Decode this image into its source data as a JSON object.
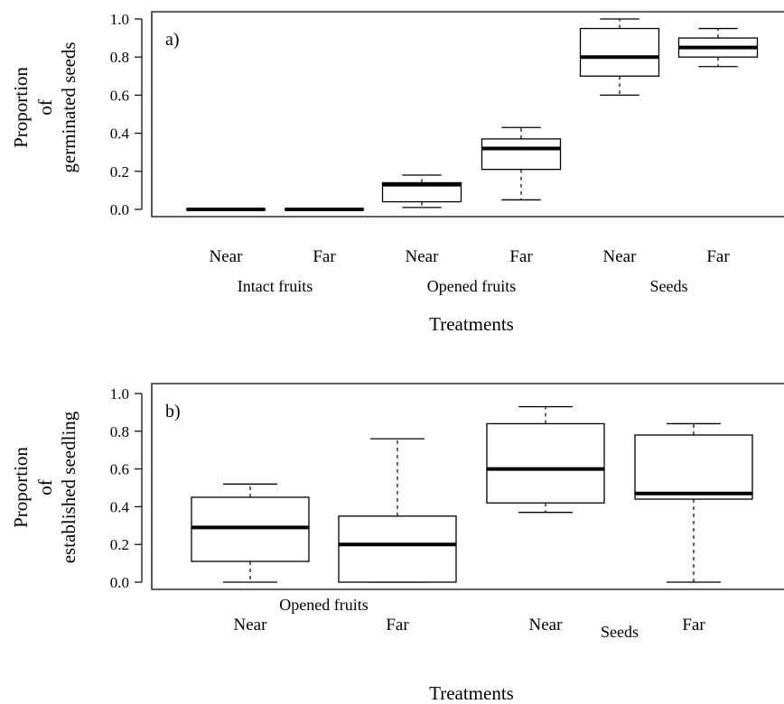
{
  "chart_data": [
    {
      "type": "boxplot",
      "panel_label": "a)",
      "ylabel_lines": [
        "Proportion",
        "of",
        "germinated seeds"
      ],
      "xlabel": "Treatments",
      "ylim": [
        0,
        1
      ],
      "yticks": [
        "0.0",
        "0.2",
        "0.4",
        "0.6",
        "0.8",
        "1.0"
      ],
      "groups": [
        {
          "label": "Intact fruits",
          "categories": [
            "Near",
            "Far"
          ]
        },
        {
          "label": "Opened fruits",
          "categories": [
            "Near",
            "Far"
          ]
        },
        {
          "label": "Seeds",
          "categories": [
            "Near",
            "Far"
          ]
        }
      ],
      "boxes": [
        {
          "group": "Intact fruits",
          "category": "Near",
          "min": 0.0,
          "q1": 0.0,
          "median": 0.0,
          "q3": 0.0,
          "max": 0.0
        },
        {
          "group": "Intact fruits",
          "category": "Far",
          "min": 0.0,
          "q1": 0.0,
          "median": 0.0,
          "q3": 0.0,
          "max": 0.0
        },
        {
          "group": "Opened fruits",
          "category": "Near",
          "min": 0.01,
          "q1": 0.04,
          "median": 0.13,
          "q3": 0.14,
          "max": 0.18
        },
        {
          "group": "Opened fruits",
          "category": "Far",
          "min": 0.05,
          "q1": 0.21,
          "median": 0.32,
          "q3": 0.37,
          "max": 0.43
        },
        {
          "group": "Seeds",
          "category": "Near",
          "min": 0.6,
          "q1": 0.7,
          "median": 0.8,
          "q3": 0.95,
          "max": 1.0
        },
        {
          "group": "Seeds",
          "category": "Far",
          "min": 0.75,
          "q1": 0.8,
          "median": 0.85,
          "q3": 0.9,
          "max": 0.95
        }
      ]
    },
    {
      "type": "boxplot",
      "panel_label": "b)",
      "ylabel_lines": [
        "Proportion",
        "of",
        "established seedling"
      ],
      "xlabel": "Treatments",
      "ylim": [
        0,
        1
      ],
      "yticks": [
        "0.0",
        "0.2",
        "0.4",
        "0.6",
        "0.8",
        "1.0"
      ],
      "groups": [
        {
          "label": "Opened fruits",
          "categories": [
            "Near",
            "Far"
          ]
        },
        {
          "label": "Seeds",
          "categories": [
            "Near",
            "Far"
          ]
        }
      ],
      "boxes": [
        {
          "group": "Opened fruits",
          "category": "Near",
          "min": 0.0,
          "q1": 0.11,
          "median": 0.29,
          "q3": 0.45,
          "max": 0.52
        },
        {
          "group": "Opened fruits",
          "category": "Far",
          "min": 0.0,
          "q1": 0.0,
          "median": 0.2,
          "q3": 0.35,
          "max": 0.76
        },
        {
          "group": "Seeds",
          "category": "Near",
          "min": 0.37,
          "q1": 0.42,
          "median": 0.6,
          "q3": 0.84,
          "max": 0.93
        },
        {
          "group": "Seeds",
          "category": "Far",
          "min": 0.0,
          "q1": 0.44,
          "median": 0.47,
          "q3": 0.78,
          "max": 0.84
        }
      ]
    }
  ]
}
